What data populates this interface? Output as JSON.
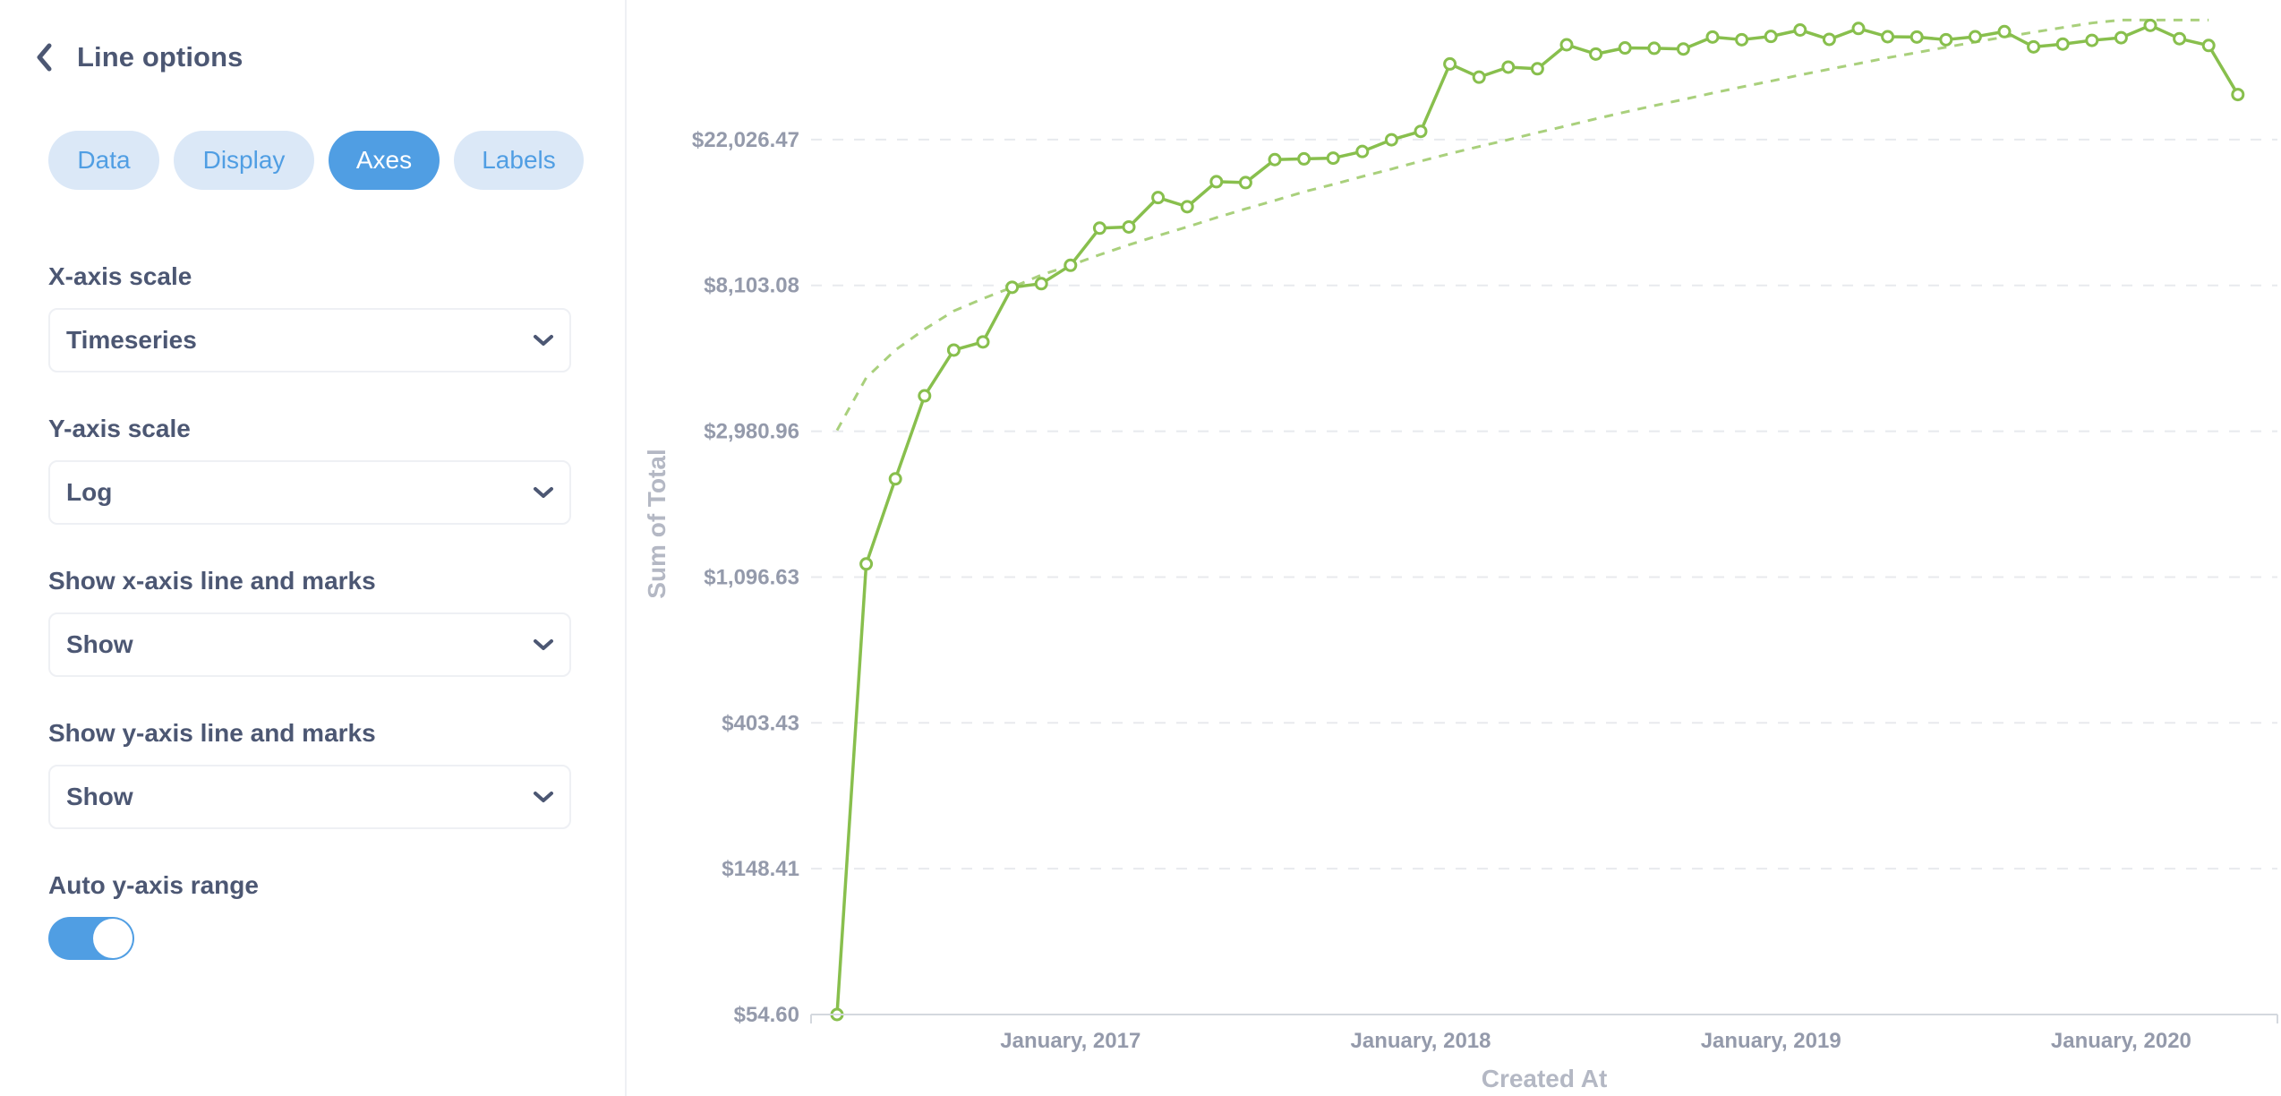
{
  "sidebar": {
    "back_label": "Line options",
    "tabs": [
      {
        "label": "Data",
        "active": false
      },
      {
        "label": "Display",
        "active": false
      },
      {
        "label": "Axes",
        "active": true
      },
      {
        "label": "Labels",
        "active": false
      }
    ],
    "settings": [
      {
        "label": "X-axis scale",
        "value": "Timeseries"
      },
      {
        "label": "Y-axis scale",
        "value": "Log"
      },
      {
        "label": "Show x-axis line and marks",
        "value": "Show"
      },
      {
        "label": "Show y-axis line and marks",
        "value": "Show"
      }
    ],
    "auto_range": {
      "label": "Auto y-axis range",
      "enabled": true
    }
  },
  "colors": {
    "accent": "#509ee3",
    "accent_light": "#dbe8f7",
    "series": "#88bf4d",
    "text": "#4c5773",
    "muted_text": "#949aab"
  },
  "chart_data": {
    "type": "line",
    "title": "",
    "xlabel": "Created At",
    "ylabel": "Sum of Total",
    "y_scale": "log",
    "x_scale": "timeseries",
    "ylim": [
      54.6,
      52000
    ],
    "grid": true,
    "y_ticks": [
      "$54.60",
      "$148.41",
      "$403.43",
      "$1,096.63",
      "$2,980.96",
      "$8,103.08",
      "$22,026.47"
    ],
    "y_tick_values": [
      54.6,
      148.41,
      403.43,
      1096.63,
      2980.96,
      8103.08,
      22026.47
    ],
    "x_ticks": [
      "January, 2017",
      "January, 2018",
      "January, 2019",
      "January, 2020"
    ],
    "x_tick_months": [
      8,
      20,
      32,
      44
    ],
    "series": [
      {
        "values": [
          54.6,
          1200,
          2150,
          3800,
          5200,
          5500,
          8000,
          8200,
          9300,
          12000,
          12100,
          14800,
          13900,
          16500,
          16400,
          19200,
          19300,
          19400,
          20300,
          22000,
          23300,
          37000,
          33800,
          36200,
          35800,
          42200,
          39600,
          41300,
          41200,
          41000,
          44500,
          43700,
          44700,
          46700,
          43800,
          47200,
          44600,
          44500,
          43700,
          44600,
          46200,
          41600,
          42400,
          43500,
          44300,
          48200,
          44000,
          42000,
          30000
        ]
      },
      {
        "values": [
          3000,
          4300,
          5200,
          6000,
          6800,
          7400,
          8000,
          8700,
          9300,
          10000,
          10700,
          11400,
          12100,
          12900,
          13700,
          14500,
          15400,
          16200,
          17100,
          18000,
          19000,
          20000,
          21000,
          22000,
          23100,
          24200,
          25400,
          26600,
          27800,
          29000,
          30300,
          31600,
          32900,
          34300,
          35700,
          37100,
          38600,
          40000,
          41500,
          43000,
          44500,
          46000,
          47500,
          49000,
          50000,
          50000,
          50000,
          50000
        ]
      }
    ]
  }
}
